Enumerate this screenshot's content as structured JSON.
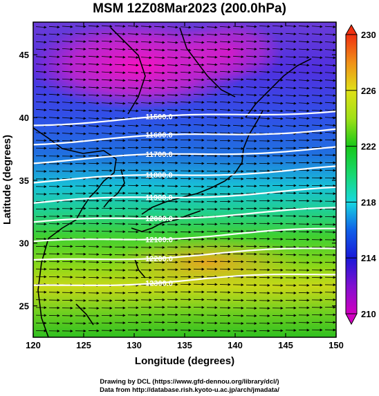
{
  "title": "MSM 12Z08Mar2023 (200.0hPa)",
  "x_axis": {
    "label": "Longitude (degrees)",
    "range": [
      120,
      150
    ],
    "ticks": [
      "120",
      "125",
      "130",
      "135",
      "140",
      "145",
      "150"
    ]
  },
  "y_axis": {
    "label": "Latitude  (degrees)",
    "range": [
      22.5,
      47.6
    ],
    "ticks": [
      "25",
      "30",
      "35",
      "40",
      "45"
    ]
  },
  "colorbar": {
    "range": [
      210,
      230
    ],
    "labels": [
      "210",
      "214",
      "218",
      "222",
      "226",
      "230"
    ],
    "colors": [
      "#d000c0",
      "#1818d8",
      "#18d8e0",
      "#18c818",
      "#e0e018",
      "#f09018",
      "#f03010"
    ]
  },
  "contour_labels": [
    "11500.0",
    "11600.0",
    "11700.0",
    "11800.0",
    "11900.0",
    "12000.0",
    "12100.0",
    "12200.0",
    "12300.0"
  ],
  "contour_lats": [
    39.5,
    38.0,
    36.5,
    34.9,
    33.2,
    31.6,
    30.0,
    28.5,
    26.5
  ],
  "footer": {
    "line1": "Drawing by DCL (https://www.gfd-dennou.org/library/dcl/)",
    "line2": "Data from http://database.rish.kyoto-u.ac.jp/arch/jmadata/"
  }
}
